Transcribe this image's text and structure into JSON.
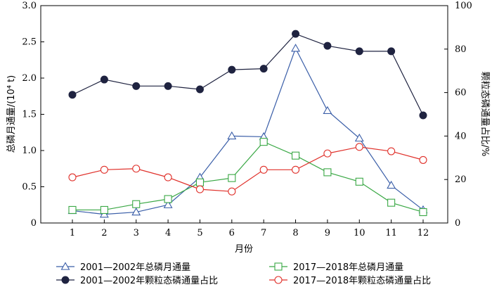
{
  "chart_data": {
    "type": "line",
    "xlabel": "月份",
    "ylabel_left": "总磷月通量/(10⁴ t)",
    "ylabel_right": "颗粒态磷通量占比/%",
    "x": [
      1,
      2,
      3,
      4,
      5,
      6,
      7,
      8,
      9,
      10,
      11,
      12
    ],
    "xticks": [
      "1",
      "2",
      "3",
      "4",
      "5",
      "6",
      "7",
      "8",
      "9",
      "10",
      "11",
      "12"
    ],
    "ylim_left": [
      0,
      3.0
    ],
    "yticks_left": [
      "0",
      "0.5",
      "1.0",
      "1.5",
      "2.0",
      "2.5",
      "3.0"
    ],
    "ylim_right": [
      0,
      100
    ],
    "yticks_right": [
      "0",
      "20",
      "40",
      "60",
      "80",
      "100"
    ],
    "grid": false,
    "legend_position": "bottom",
    "series": [
      {
        "name": "2001—2002年总磷月通量",
        "axis": "left",
        "marker": "triangle",
        "color": "#3a5ea8",
        "values": [
          0.17,
          0.12,
          0.15,
          0.25,
          0.63,
          1.2,
          1.19,
          2.41,
          1.55,
          1.17,
          0.52,
          0.18
        ]
      },
      {
        "name": "2017—2018年总磷月通量",
        "axis": "left",
        "marker": "square",
        "color": "#3aa845",
        "values": [
          0.18,
          0.18,
          0.26,
          0.33,
          0.56,
          0.62,
          1.12,
          0.93,
          0.7,
          0.57,
          0.28,
          0.15
        ]
      },
      {
        "name": "2001—2002年颗粒态磷通量占比",
        "axis": "right",
        "marker": "filled-circle",
        "color": "#1f2340",
        "values": [
          59,
          66,
          63,
          63,
          61.5,
          70.5,
          71,
          87,
          81.5,
          79,
          79,
          49.5
        ]
      },
      {
        "name": "2017—2018年颗粒态磷通量占比",
        "axis": "right",
        "marker": "circle",
        "color": "#e0302a",
        "values": [
          21,
          24.5,
          25,
          21,
          15.5,
          14.5,
          24.5,
          24.5,
          32,
          35,
          33,
          29
        ]
      }
    ]
  }
}
